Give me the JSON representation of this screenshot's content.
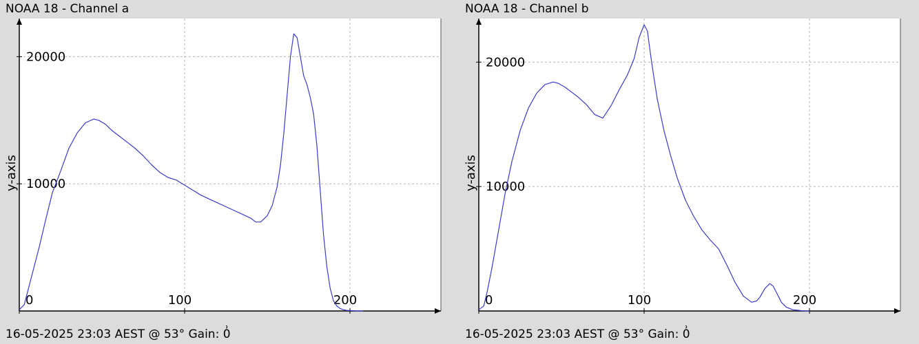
{
  "panels": [
    {
      "title": "NOAA 18 - Channel a",
      "footer": "16-05-2025 23:03 AEST @ 53° Gain: 0͗",
      "chart_data": {
        "type": "line",
        "title": "NOAA 18 - Channel a",
        "xlabel": "",
        "ylabel": "y-axis",
        "xlim": [
          0,
          255
        ],
        "ylim": [
          0,
          23000
        ],
        "grid": true,
        "x_ticks": [
          0,
          100,
          200
        ],
        "y_ticks": [
          10000,
          20000
        ],
        "series": [
          {
            "color": "#3a3acc",
            "x": [
              0,
              3,
              5,
              8,
              12,
              16,
              20,
              25,
              30,
              35,
              40,
              45,
              48,
              52,
              56,
              60,
              65,
              70,
              75,
              80,
              85,
              90,
              95,
              100,
              105,
              110,
              115,
              120,
              125,
              130,
              135,
              140,
              143,
              146,
              150,
              153,
              156,
              158,
              160,
              162,
              164,
              166,
              168,
              170,
              172,
              174,
              176,
              178,
              180,
              182,
              184,
              186,
              188,
              190,
              192,
              194,
              196,
              198,
              200,
              205,
              208
            ],
            "values": [
              100,
              500,
              1500,
              3000,
              5000,
              7200,
              9300,
              11000,
              12800,
              14000,
              14800,
              15100,
              15000,
              14700,
              14200,
              13800,
              13300,
              12800,
              12200,
              11500,
              10900,
              10500,
              10300,
              9900,
              9500,
              9100,
              8800,
              8500,
              8200,
              7900,
              7600,
              7300,
              7000,
              7000,
              7500,
              8300,
              9800,
              11500,
              14000,
              17000,
              20000,
              21800,
              21500,
              20000,
              18500,
              17800,
              16800,
              15500,
              13000,
              9500,
              6000,
              3500,
              1800,
              800,
              400,
              200,
              100,
              50,
              30,
              0,
              0
            ]
          }
        ]
      }
    },
    {
      "title": "NOAA 18 - Channel b",
      "footer": "16-05-2025 23:03 AEST @ 53° Gain: 0͗",
      "chart_data": {
        "type": "line",
        "title": "NOAA 18 - Channel b",
        "xlabel": "",
        "ylabel": "y-axis",
        "xlim": [
          0,
          255
        ],
        "ylim": [
          0,
          23500
        ],
        "grid": true,
        "x_ticks": [
          0,
          100,
          200
        ],
        "y_ticks": [
          10000,
          20000
        ],
        "series": [
          {
            "color": "#3a3acc",
            "x": [
              0,
              3,
              5,
              8,
              12,
              16,
              20,
              25,
              30,
              35,
              40,
              45,
              48,
              52,
              56,
              60,
              65,
              70,
              75,
              80,
              85,
              90,
              94,
              97,
              100,
              102,
              104,
              106,
              108,
              112,
              116,
              120,
              125,
              130,
              135,
              140,
              145,
              150,
              155,
              160,
              165,
              168,
              170,
              173,
              176,
              178,
              180,
              183,
              186,
              190,
              195,
              200
            ],
            "values": [
              100,
              400,
              1500,
              3500,
              6500,
              9500,
              12000,
              14500,
              16300,
              17500,
              18200,
              18400,
              18300,
              18000,
              17600,
              17200,
              16600,
              15800,
              15500,
              16500,
              17800,
              19000,
              20300,
              22000,
              23000,
              22500,
              20500,
              18700,
              17000,
              14500,
              12500,
              10700,
              8900,
              7600,
              6500,
              5700,
              5000,
              3700,
              2300,
              1200,
              700,
              800,
              1100,
              1800,
              2200,
              2000,
              1500,
              700,
              300,
              100,
              30,
              0
            ]
          }
        ]
      }
    }
  ]
}
